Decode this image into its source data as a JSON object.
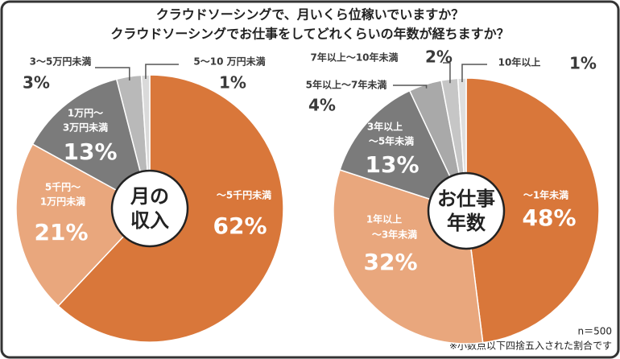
{
  "title": [
    "クラウドソーシングで、月いくら位稼いでいますか？",
    "クラウドソーシングでお仕事をしてどれくらいの年数が経ちますか？"
  ],
  "note": [
    "n＝500",
    "※小数点以下四捨五入された割合です"
  ],
  "chart_data": [
    {
      "type": "pie",
      "center_label": [
        "月の",
        "収入"
      ],
      "categories": [
        [
          "～5千円未満"
        ],
        [
          "5千円～",
          "1万円未満"
        ],
        [
          "1万円～",
          "3万円未満"
        ],
        [
          "3～5万円未満"
        ],
        [
          "5～10 万円未満"
        ]
      ],
      "values": [
        62,
        21,
        13,
        3,
        1
      ],
      "value_labels": [
        "62%",
        "21%",
        "13%",
        "3%",
        "1%"
      ],
      "colors": [
        "#d9773a",
        "#e9a77d",
        "#7b7b7b",
        "#b9b9b9",
        "#dadada"
      ]
    },
    {
      "type": "pie",
      "center_label": [
        "お仕事",
        "年数"
      ],
      "categories": [
        [
          "～1年未満"
        ],
        [
          "1年以上",
          "～3年未満"
        ],
        [
          "3年以上",
          "～5年未満"
        ],
        [
          "5年以上～7年未満"
        ],
        [
          "7年以上～10年未満"
        ],
        [
          "10年以上"
        ]
      ],
      "values": [
        48,
        32,
        13,
        4,
        2,
        1
      ],
      "value_labels": [
        "48%",
        "32%",
        "13%",
        "4%",
        "2%",
        "1%"
      ],
      "colors": [
        "#d9773a",
        "#e9a77d",
        "#7b7b7b",
        "#a9a9a9",
        "#c6c6c6",
        "#dedede"
      ]
    }
  ]
}
